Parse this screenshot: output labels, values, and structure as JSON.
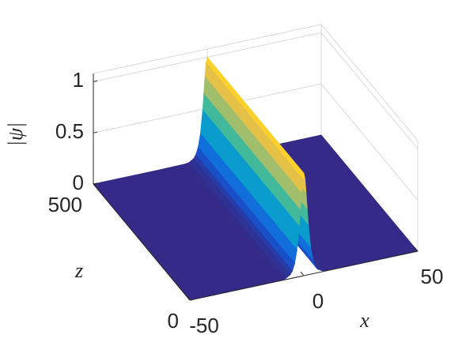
{
  "chart_data": {
    "type": "surface",
    "xlabel": "x",
    "ylabel": "z",
    "zlabel": "|ψ|",
    "x": [
      -50,
      -20,
      -10,
      -8,
      -6,
      -5,
      -4,
      -3,
      -2,
      -1.5,
      -1,
      -0.5,
      0,
      0.5,
      1,
      1.5,
      2,
      3,
      4,
      5,
      6,
      8,
      10,
      20,
      50
    ],
    "values": [
      0,
      0,
      0.0025,
      0.0097,
      0.037,
      0.071,
      0.138,
      0.266,
      0.492,
      0.648,
      0.812,
      0.947,
      1,
      0.947,
      0.812,
      0.648,
      0.492,
      0.266,
      0.138,
      0.071,
      0.037,
      0.0097,
      0.0025,
      0,
      0
    ],
    "xlim": [
      -50,
      50
    ],
    "xticks": [
      -50,
      0,
      50
    ],
    "ylim": [
      0,
      500
    ],
    "yticks": [
      0,
      500
    ],
    "zlim": [
      0,
      1.08
    ],
    "zticks": [
      0,
      0.5,
      1
    ],
    "colormap": "parula",
    "grid": true
  }
}
